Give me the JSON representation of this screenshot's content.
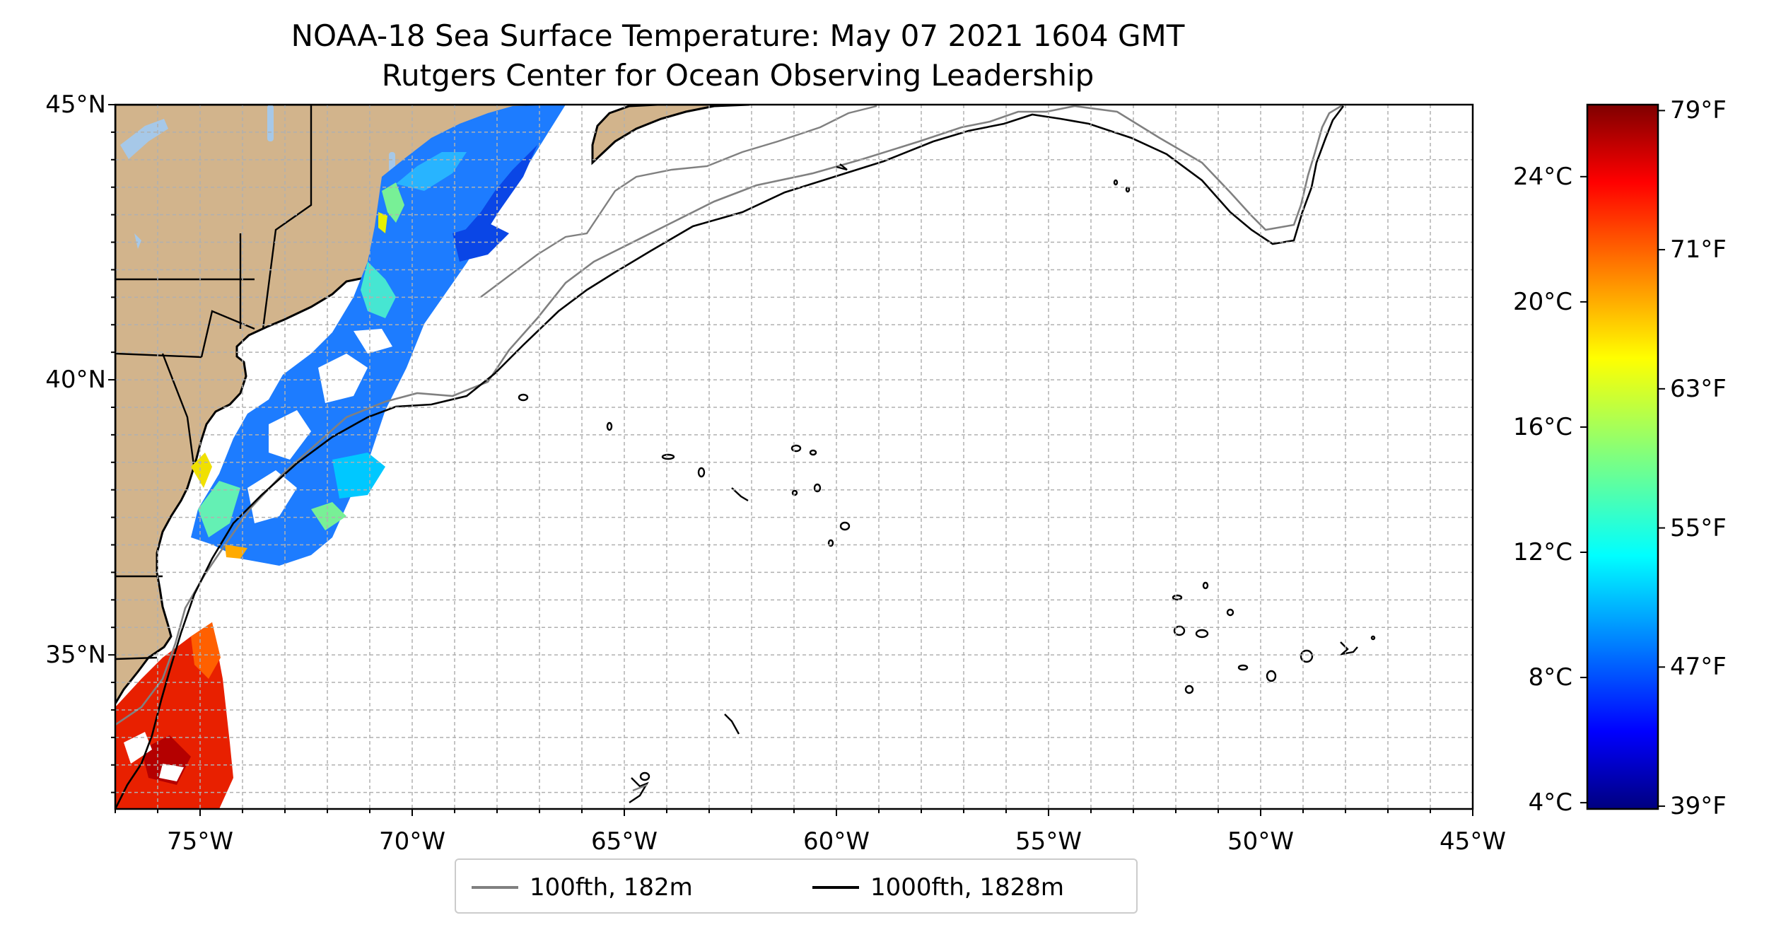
{
  "title": "NOAA-18 Sea Surface Temperature: May 07 2021 1604 GMT",
  "subtitle": "Rutgers Center for Ocean Observing Leadership",
  "map": {
    "projection": "plate carree",
    "lon_range": [
      -77,
      -45
    ],
    "lat_range": [
      32.2,
      45
    ],
    "land_color": "#d2b48c",
    "inland_water_color": "#a6c8e8",
    "grid": true,
    "lat_tick_labels": [
      {
        "lat": 45,
        "label": "45°N"
      },
      {
        "lat": 40,
        "label": "40°N"
      },
      {
        "lat": 35,
        "label": "35°N"
      }
    ],
    "lon_tick_labels": [
      {
        "lon": -75,
        "label": "75°W"
      },
      {
        "lon": -70,
        "label": "70°W"
      },
      {
        "lon": -65,
        "label": "65°W"
      },
      {
        "lon": -60,
        "label": "60°W"
      },
      {
        "lon": -55,
        "label": "55°W"
      },
      {
        "lon": -50,
        "label": "50°W"
      },
      {
        "lon": -45,
        "label": "45°W"
      }
    ],
    "swath_colors": {
      "cold": "#0050ff",
      "mid": "#00b4ff",
      "warm": "#f0e000",
      "hot": "#e82000"
    }
  },
  "colorbar": {
    "colormap": "jet",
    "range_c": [
      3.8,
      26.3
    ],
    "celsius_ticks": [
      {
        "value": 24,
        "label": "24°C"
      },
      {
        "value": 20,
        "label": "20°C"
      },
      {
        "value": 16,
        "label": "16°C"
      },
      {
        "value": 12,
        "label": "12°C"
      },
      {
        "value": 8,
        "label": "8°C"
      },
      {
        "value": 4,
        "label": "4°C"
      }
    ],
    "fahrenheit_ticks": [
      {
        "value": 79,
        "label": "79°F"
      },
      {
        "value": 71,
        "label": "71°F"
      },
      {
        "value": 63,
        "label": "63°F"
      },
      {
        "value": 55,
        "label": "55°F"
      },
      {
        "value": 47,
        "label": "47°F"
      },
      {
        "value": 39,
        "label": "39°F"
      }
    ]
  },
  "legend": {
    "placement": "bottom-center",
    "items": [
      {
        "label": "100fth, 182m",
        "color": "#808080"
      },
      {
        "label": "1000fth, 1828m",
        "color": "#000000"
      }
    ]
  }
}
